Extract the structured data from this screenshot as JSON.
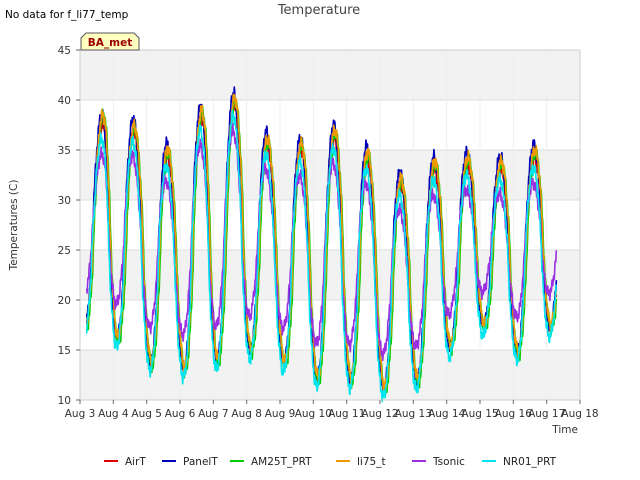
{
  "chart_data": {
    "type": "line",
    "title": "Temperature",
    "note": "No data for f_li77_temp",
    "badge": "BA_met",
    "xlabel": "Time",
    "ylabel": "Temperatures (C)",
    "xlim": [
      3,
      18
    ],
    "ylim": [
      10,
      45
    ],
    "xticks": [
      3,
      4,
      5,
      6,
      7,
      8,
      9,
      10,
      11,
      12,
      13,
      14,
      15,
      16,
      17,
      18
    ],
    "xtick_labels": [
      "Aug 3",
      "Aug 4",
      "Aug 5",
      "Aug 6",
      "Aug 7",
      "Aug 8",
      "Aug 9",
      "Aug 10",
      "Aug 11",
      "Aug 12",
      "Aug 13",
      "Aug 14",
      "Aug 15",
      "Aug 16",
      "Aug 17",
      "Aug 18"
    ],
    "yticks": [
      10,
      15,
      20,
      25,
      30,
      35,
      40,
      45
    ],
    "grid": true,
    "band_colors": [
      "#f2f2f2",
      "#ffffff"
    ],
    "legend_position": "bottom",
    "day_extremes": [
      {
        "day": 3,
        "max": 24.5,
        "min": 16.5
      },
      {
        "day": 4,
        "max": 40.5,
        "min": 15.5
      },
      {
        "day": 5,
        "max": 36.5,
        "min": 13.0
      },
      {
        "day": 6,
        "max": 34.5,
        "min": 12.5
      },
      {
        "day": 7,
        "max": 39.5,
        "min": 13.5
      },
      {
        "day": 8,
        "max": 40.0,
        "min": 14.5
      },
      {
        "day": 9,
        "max": 35.0,
        "min": 13.0
      },
      {
        "day": 10,
        "max": 35.5,
        "min": 11.5
      },
      {
        "day": 11,
        "max": 37.0,
        "min": 11.5
      },
      {
        "day": 12,
        "max": 34.0,
        "min": 10.5
      },
      {
        "day": 13,
        "max": 31.5,
        "min": 11.5
      },
      {
        "day": 14,
        "max": 34.0,
        "min": 15.0
      },
      {
        "day": 15,
        "max": 34.0,
        "min": 17.0
      },
      {
        "day": 16,
        "max": 33.5,
        "min": 14.0
      },
      {
        "day": 17,
        "max": 35.0,
        "min": 17.0
      }
    ],
    "series": [
      {
        "name": "AirT",
        "color": "#dd0000",
        "max_offset": -0.5,
        "min_offset": 0.5,
        "phase": 0.0
      },
      {
        "name": "PanelT",
        "color": "#0000bb",
        "max_offset": 0.8,
        "min_offset": 0.5,
        "phase": -0.02
      },
      {
        "name": "AM25T_PRT",
        "color": "#00cc00",
        "max_offset": 0.0,
        "min_offset": 0.3,
        "phase": 0.03
      },
      {
        "name": "li75_t",
        "color": "#ee9900",
        "max_offset": 0.3,
        "min_offset": 0.8,
        "phase": 0.01
      },
      {
        "name": "Tsonic",
        "color": "#9b30e0",
        "max_offset": -3.0,
        "min_offset": 4.0,
        "phase": -0.04
      },
      {
        "name": "NR01_PRT",
        "color": "#00e5ee",
        "max_offset": -1.5,
        "min_offset": -0.3,
        "phase": -0.03
      }
    ]
  }
}
